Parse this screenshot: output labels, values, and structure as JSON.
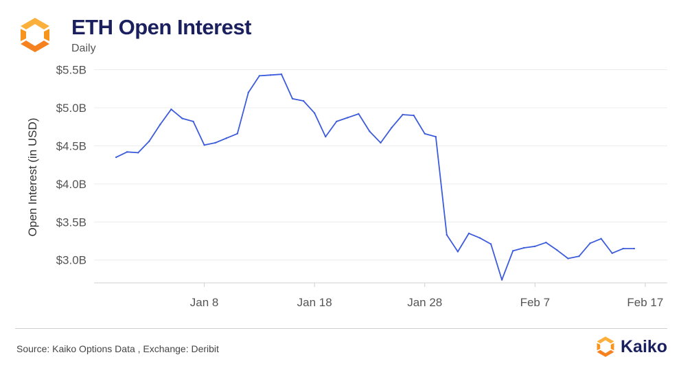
{
  "header": {
    "title": "ETH Open Interest",
    "subtitle": "Daily"
  },
  "footer": {
    "source": "Source: Kaiko Options Data , Exchange: Deribit",
    "brand": "Kaiko"
  },
  "colors": {
    "line": "#3b5bdb",
    "logo_orange": "#f7941d",
    "logo_yellow": "#fbb03b",
    "title": "#1a1f5e"
  },
  "chart_data": {
    "type": "line",
    "title": "ETH Open Interest",
    "subtitle": "Daily",
    "xlabel": "",
    "ylabel": "Open Interest (in USD)",
    "yunit": "USD billions",
    "ylim": [
      2.7,
      5.55
    ],
    "yticks": [
      3.0,
      3.5,
      4.0,
      4.5,
      5.0,
      5.5
    ],
    "ytick_labels": [
      "$3.0B",
      "$3.5B",
      "$4.0B",
      "$4.5B",
      "$5.0B",
      "$5.5B"
    ],
    "xticks": [
      "2023-01-08",
      "2023-01-18",
      "2023-01-28",
      "2023-02-07",
      "2023-02-17"
    ],
    "xtick_labels": [
      "Jan 8",
      "Jan 18",
      "Jan 28",
      "Feb 7",
      "Feb 17"
    ],
    "xlim": [
      "2022-12-29",
      "2023-02-19"
    ],
    "grid": true,
    "legend": "none",
    "series": [
      {
        "x": [
          "2022-12-31",
          "2023-01-01",
          "2023-01-02",
          "2023-01-03",
          "2023-01-04",
          "2023-01-05",
          "2023-01-06",
          "2023-01-07",
          "2023-01-08",
          "2023-01-09",
          "2023-01-10",
          "2023-01-11",
          "2023-01-12",
          "2023-01-13",
          "2023-01-14",
          "2023-01-15",
          "2023-01-16",
          "2023-01-17",
          "2023-01-18",
          "2023-01-19",
          "2023-01-20",
          "2023-01-21",
          "2023-01-22",
          "2023-01-23",
          "2023-01-24",
          "2023-01-25",
          "2023-01-26",
          "2023-01-27",
          "2023-01-28",
          "2023-01-29",
          "2023-01-30",
          "2023-01-31",
          "2023-02-01",
          "2023-02-02",
          "2023-02-03",
          "2023-02-04",
          "2023-02-05",
          "2023-02-06",
          "2023-02-07",
          "2023-02-08",
          "2023-02-09",
          "2023-02-10",
          "2023-02-11",
          "2023-02-12",
          "2023-02-13",
          "2023-02-14",
          "2023-02-15",
          "2023-02-16"
        ],
        "values": [
          4.35,
          4.42,
          4.41,
          4.56,
          4.78,
          4.98,
          4.86,
          4.82,
          4.51,
          4.54,
          4.6,
          4.66,
          5.2,
          5.42,
          5.43,
          5.44,
          5.12,
          5.09,
          4.93,
          4.62,
          4.82,
          4.87,
          4.92,
          4.69,
          4.54,
          4.74,
          4.91,
          4.9,
          4.66,
          4.62,
          3.33,
          3.11,
          3.35,
          3.29,
          3.21,
          2.74,
          3.12,
          3.16,
          3.18,
          3.23,
          3.13,
          3.02,
          3.05,
          3.22,
          3.28,
          3.09,
          3.15,
          3.15
        ]
      }
    ]
  }
}
